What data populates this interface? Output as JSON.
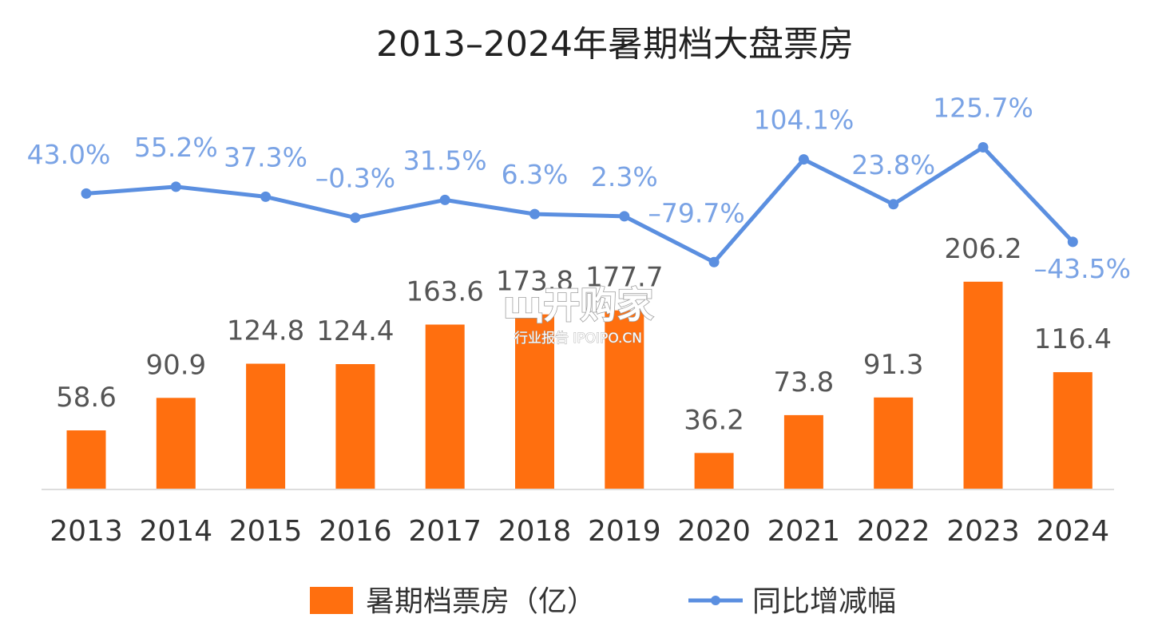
{
  "chart_data": {
    "type": "bar",
    "title": "2013–2024年暑期档大盘票房",
    "categories": [
      "2013",
      "2014",
      "2015",
      "2016",
      "2017",
      "2018",
      "2019",
      "2020",
      "2021",
      "2022",
      "2023",
      "2024"
    ],
    "series": [
      {
        "name": "暑期档票房（亿）",
        "type": "bar",
        "color": "#ff6f0f",
        "values": [
          58.6,
          90.9,
          124.8,
          124.4,
          163.6,
          173.8,
          177.7,
          36.2,
          73.8,
          91.3,
          206.2,
          116.4
        ],
        "labels": [
          "58.6",
          "90.9",
          "124.8",
          "124.4",
          "163.6",
          "173.8",
          "177.7",
          "36.2",
          "73.8",
          "91.3",
          "206.2",
          "116.4"
        ]
      },
      {
        "name": "同比增减幅",
        "type": "line",
        "color": "#5b8fe0",
        "values": [
          43.0,
          55.2,
          37.3,
          -0.3,
          31.5,
          6.3,
          2.3,
          -79.7,
          104.1,
          23.8,
          125.7,
          -43.5
        ],
        "labels": [
          "43.0%",
          "55.2%",
          "37.3%",
          "–0.3%",
          "31.5%",
          "6.3%",
          "2.3%",
          "–79.7%",
          "104.1%",
          "23.8%",
          "125.7%",
          "–43.5%"
        ]
      }
    ],
    "legend_position": "bottom-center",
    "grid": false
  },
  "watermark": {
    "title": "щ开购家",
    "subtitle": "行业报告 IPOIPO.CN"
  }
}
